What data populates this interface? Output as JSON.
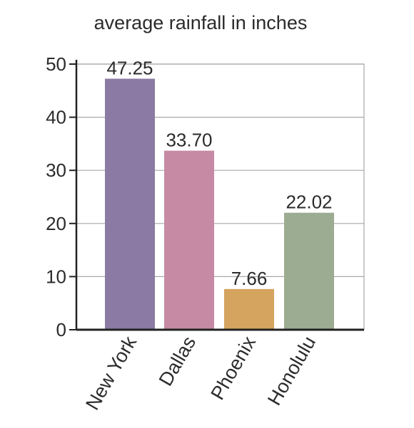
{
  "chart_data": {
    "type": "bar",
    "title": "average rainfall in inches",
    "xlabel": "",
    "ylabel": "",
    "categories": [
      "New York",
      "Dallas",
      "Phoenix",
      "Honolulu"
    ],
    "values": [
      47.25,
      33.7,
      7.66,
      22.02
    ],
    "value_labels": [
      "47.25",
      "33.70",
      "7.66",
      "22.02"
    ],
    "bar_colors": [
      "#8b7aa3",
      "#c68aa4",
      "#d5a45f",
      "#9cac92"
    ],
    "ylim": [
      0,
      50
    ],
    "yticks": [
      "0",
      "10",
      "20",
      "30",
      "40",
      "50"
    ],
    "grid": true,
    "legend": "none"
  }
}
